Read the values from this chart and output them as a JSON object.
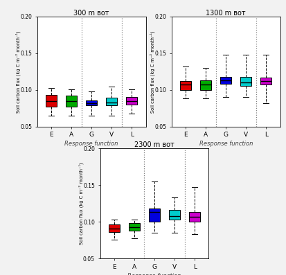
{
  "titles": [
    "300 m вот",
    "1300 m вот",
    "2300 m вот"
  ],
  "xlabel": "Response function",
  "ylabel": "Soil carbon flux (kg C m⁻² month⁻¹)",
  "categories": [
    "E",
    "A",
    "G",
    "V",
    "L"
  ],
  "colors": [
    "#dd0000",
    "#00aa00",
    "#0000dd",
    "#00cccc",
    "#cc00cc"
  ],
  "ylim": [
    0.05,
    0.2
  ],
  "yticks": [
    0.05,
    0.1,
    0.15,
    0.2
  ],
  "dashed_after": [
    1,
    3
  ],
  "boxes": {
    "plot1": {
      "E": {
        "q1": 0.077,
        "med": 0.085,
        "q3": 0.093,
        "whislo": 0.065,
        "whishi": 0.103
      },
      "A": {
        "q1": 0.077,
        "med": 0.085,
        "q3": 0.092,
        "whislo": 0.065,
        "whishi": 0.101
      },
      "G": {
        "q1": 0.079,
        "med": 0.082,
        "q3": 0.086,
        "whislo": 0.065,
        "whishi": 0.098
      },
      "V": {
        "q1": 0.079,
        "med": 0.083,
        "q3": 0.089,
        "whislo": 0.065,
        "whishi": 0.104
      },
      "L": {
        "q1": 0.08,
        "med": 0.085,
        "q3": 0.09,
        "whislo": 0.068,
        "whishi": 0.101
      }
    },
    "plot2": {
      "E": {
        "q1": 0.1,
        "med": 0.107,
        "q3": 0.112,
        "whislo": 0.088,
        "whishi": 0.132
      },
      "A": {
        "q1": 0.1,
        "med": 0.107,
        "q3": 0.113,
        "whislo": 0.088,
        "whishi": 0.13
      },
      "G": {
        "q1": 0.108,
        "med": 0.113,
        "q3": 0.118,
        "whislo": 0.09,
        "whishi": 0.148
      },
      "V": {
        "q1": 0.105,
        "med": 0.11,
        "q3": 0.118,
        "whislo": 0.09,
        "whishi": 0.148
      },
      "L": {
        "q1": 0.107,
        "med": 0.112,
        "q3": 0.117,
        "whislo": 0.082,
        "whishi": 0.148
      }
    },
    "plot3": {
      "E": {
        "q1": 0.086,
        "med": 0.091,
        "q3": 0.096,
        "whislo": 0.076,
        "whishi": 0.103
      },
      "A": {
        "q1": 0.088,
        "med": 0.093,
        "q3": 0.098,
        "whislo": 0.078,
        "whishi": 0.103
      },
      "G": {
        "q1": 0.1,
        "med": 0.113,
        "q3": 0.118,
        "whislo": 0.085,
        "whishi": 0.155
      },
      "V": {
        "q1": 0.103,
        "med": 0.108,
        "q3": 0.116,
        "whislo": 0.085,
        "whishi": 0.133
      },
      "L": {
        "q1": 0.1,
        "med": 0.107,
        "q3": 0.113,
        "whislo": 0.083,
        "whishi": 0.147
      }
    }
  },
  "bg_color": "#f2f2f2",
  "box_width": 0.55
}
